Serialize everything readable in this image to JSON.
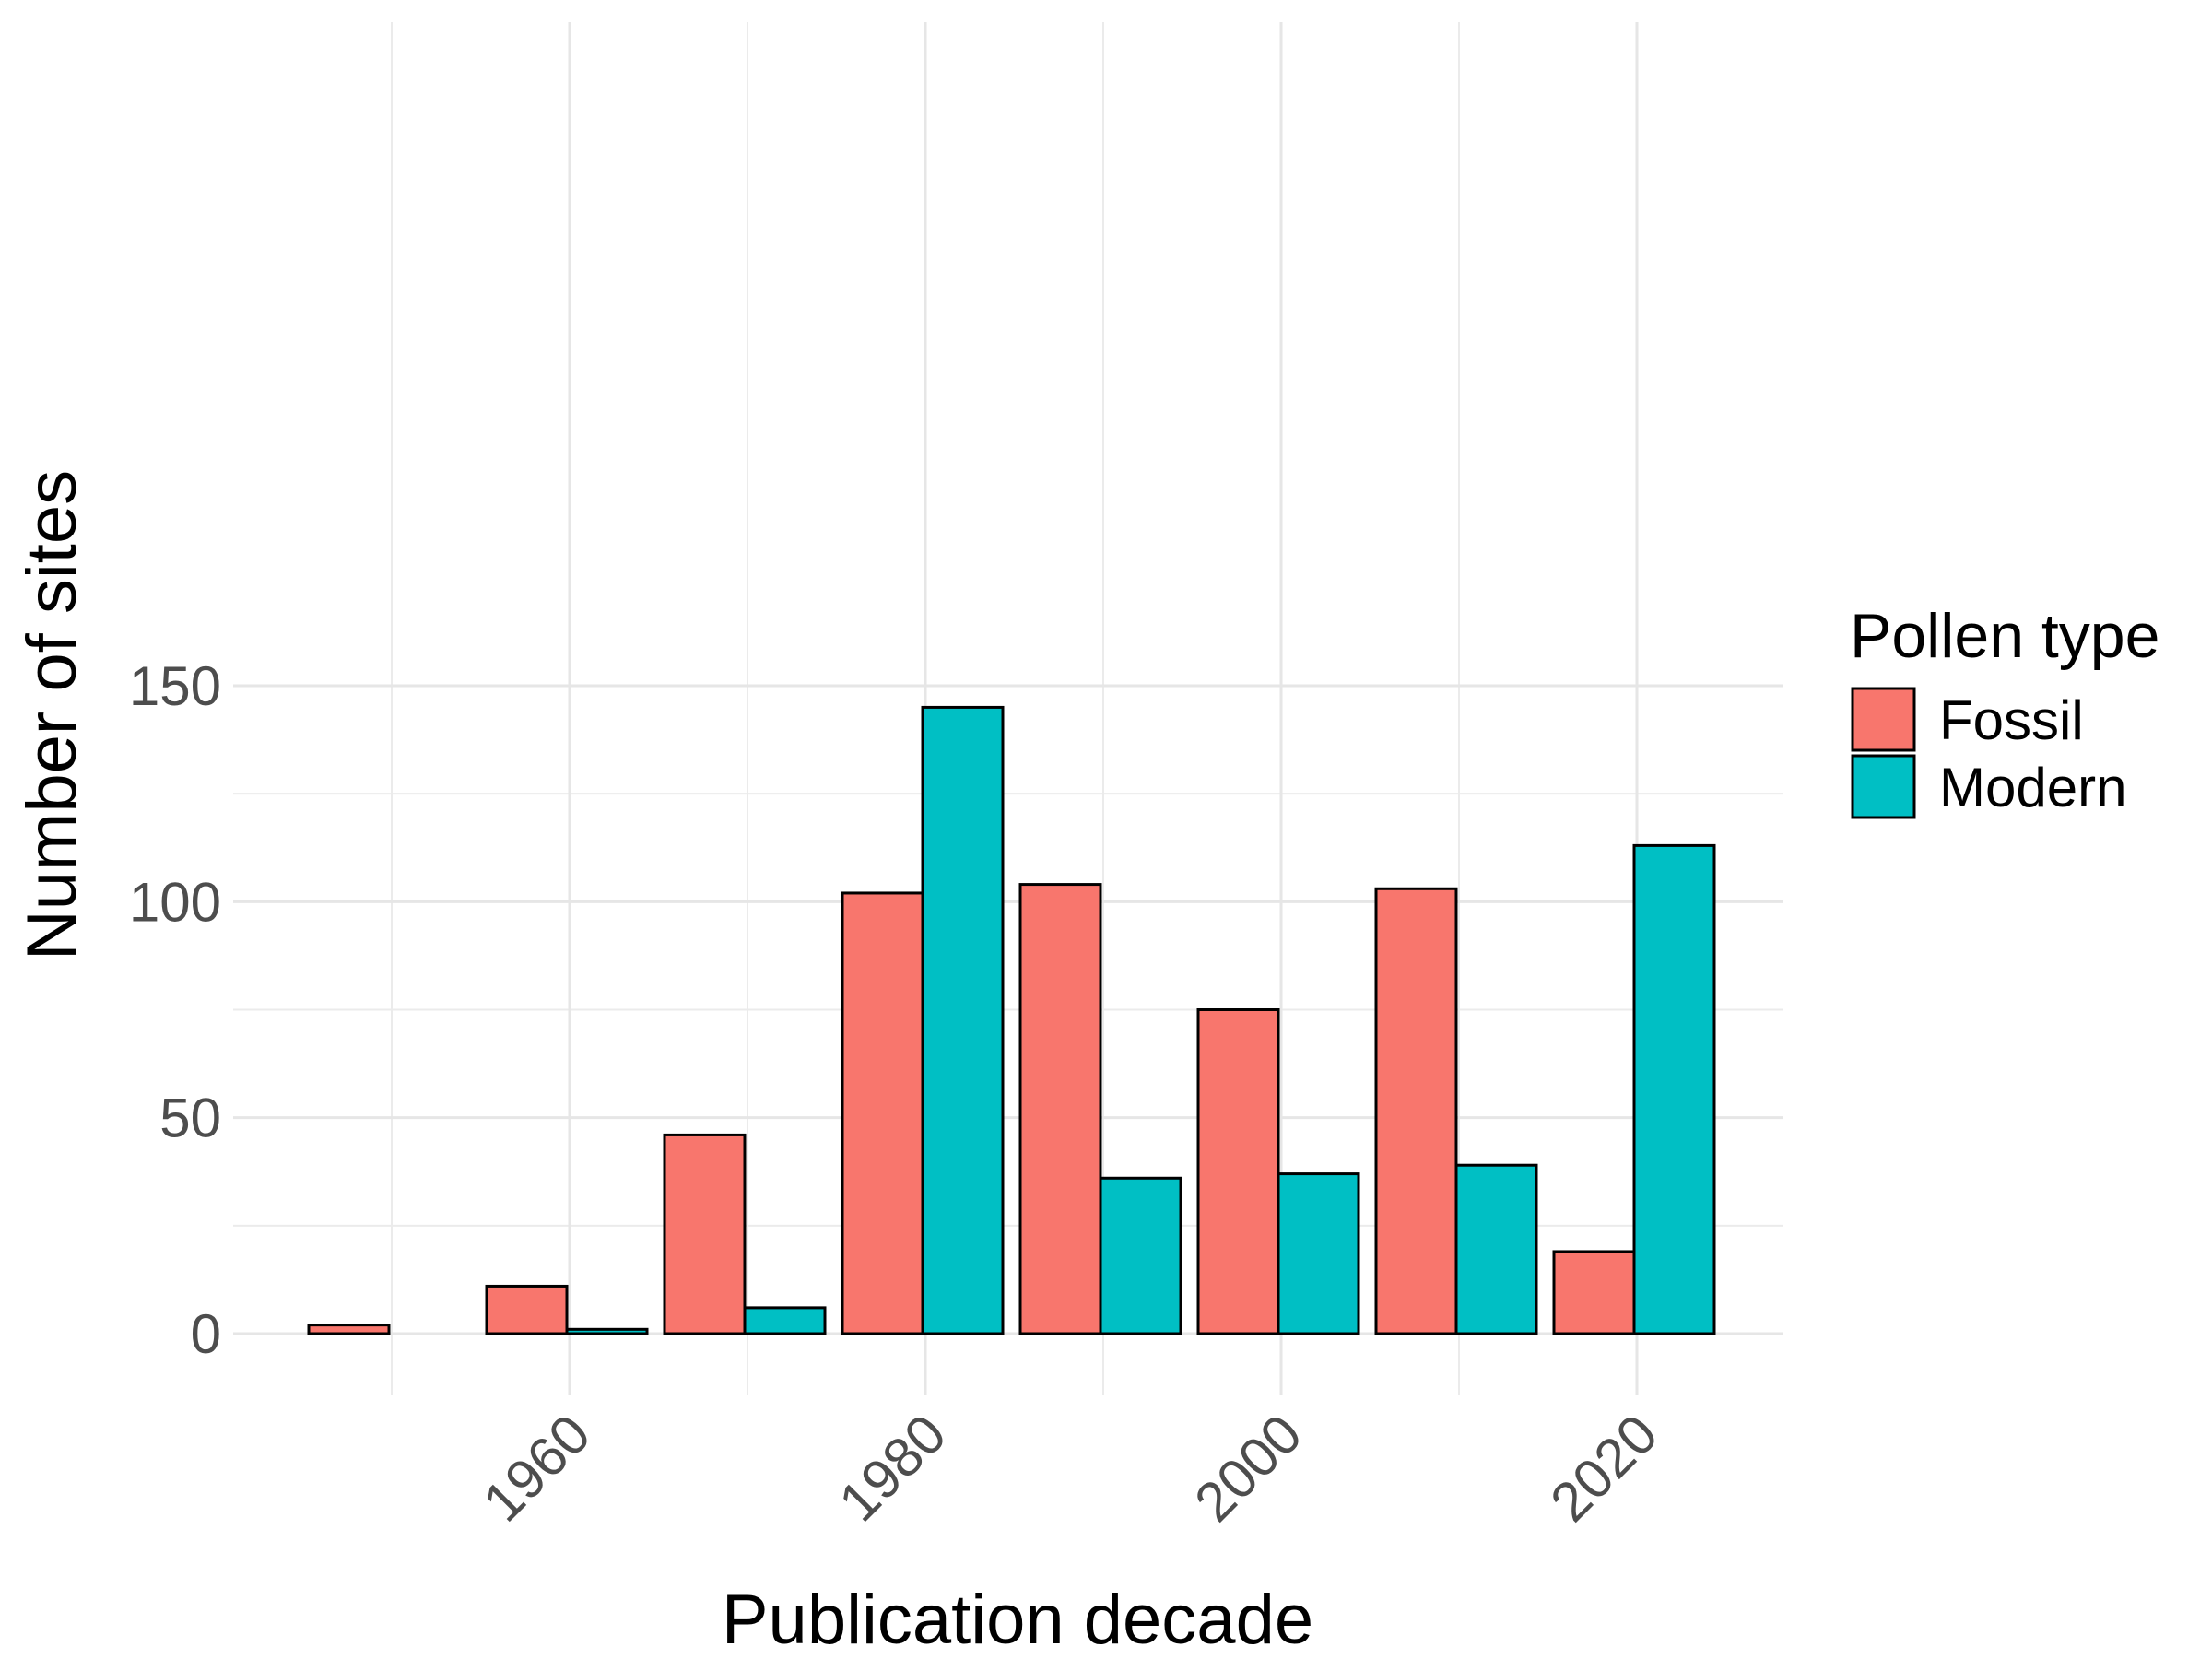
{
  "chart_data": {
    "type": "bar",
    "x": [
      1950,
      1960,
      1970,
      1980,
      1990,
      2000,
      2010,
      2020
    ],
    "series": [
      {
        "name": "Fossil",
        "color": "#F8766D",
        "values": [
          2,
          11,
          46,
          102,
          104,
          75,
          103,
          19
        ]
      },
      {
        "name": "Modern",
        "color": "#00BFC4",
        "values": [
          0,
          1,
          6,
          145,
          36,
          37,
          39,
          113
        ]
      }
    ],
    "xlabel": "Publication decade",
    "ylabel": "Number of sites",
    "x_ticks": [
      "1960",
      "1980",
      "2000",
      "2020"
    ],
    "y_ticks": [
      "0",
      "50",
      "100",
      "150"
    ],
    "ylim": [
      0,
      150
    ],
    "xlim": [
      1940,
      2030
    ],
    "legend": {
      "title": "Pollen type",
      "position": "right"
    },
    "grid": true
  }
}
